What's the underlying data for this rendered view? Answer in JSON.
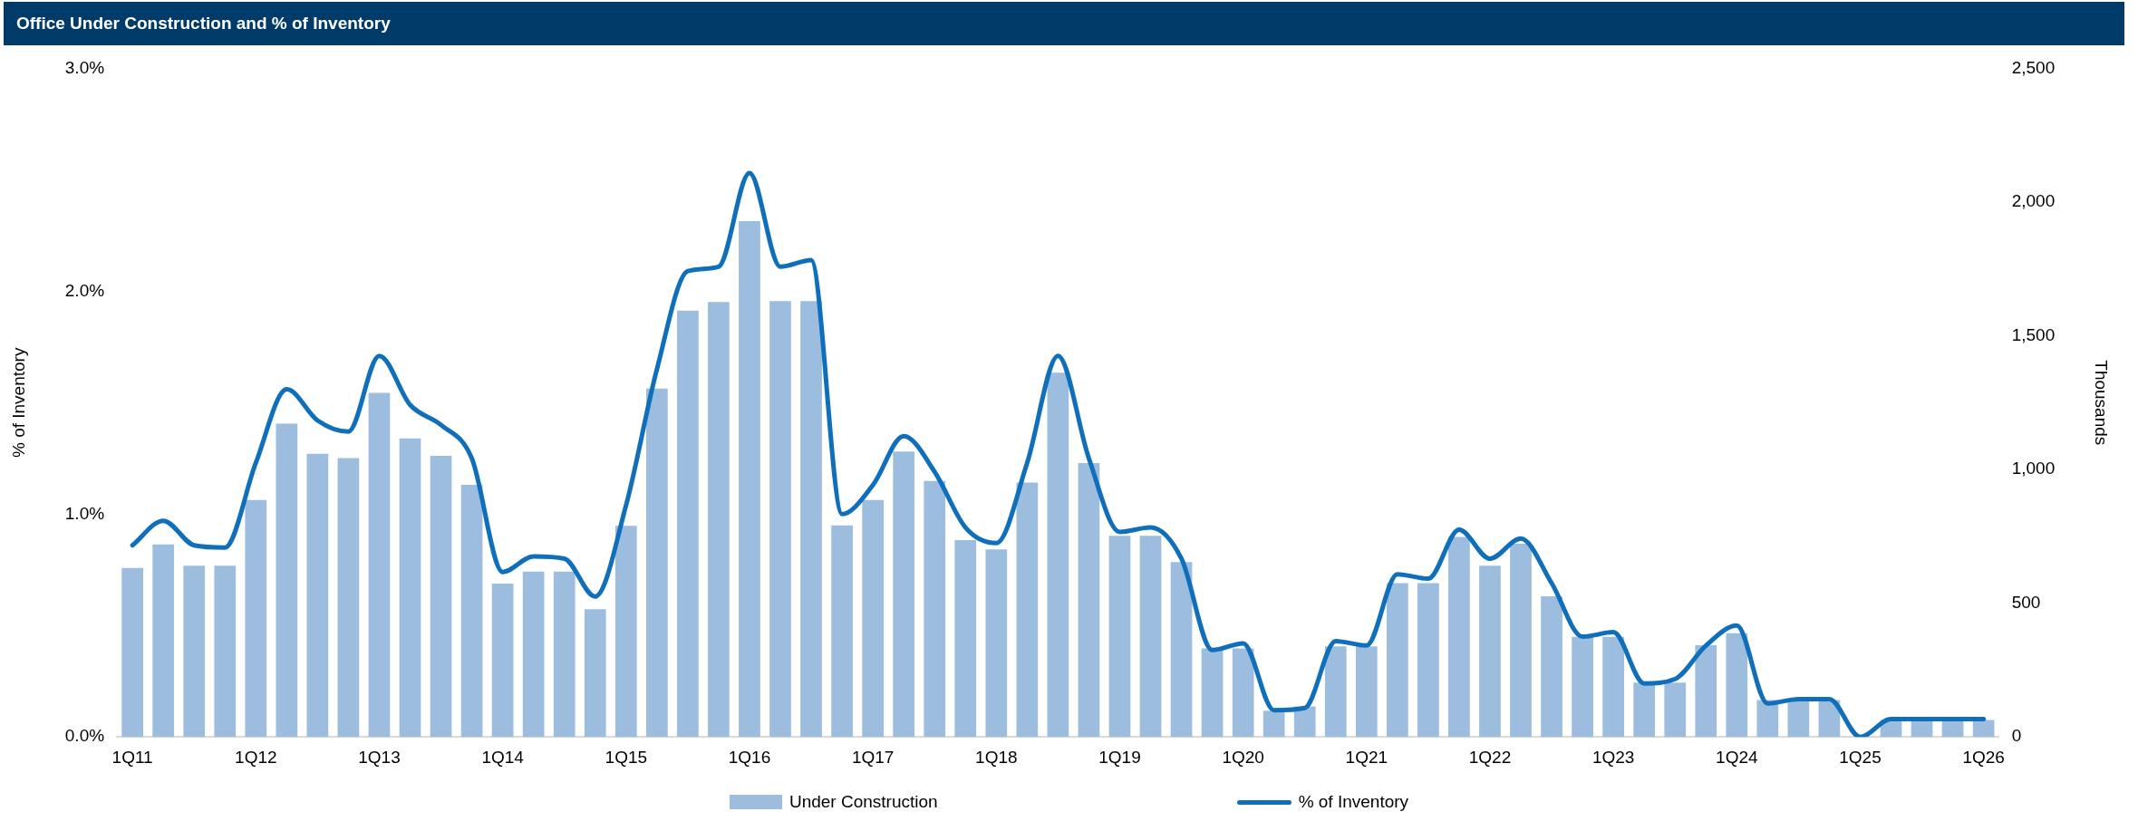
{
  "chart_data": {
    "type": "bar",
    "title": "Office Under Construction and % of Inventory",
    "ylabel": "% of Inventory",
    "y2label": "Thousands",
    "categories": [
      "1Q11",
      null,
      null,
      null,
      "1Q12",
      null,
      null,
      null,
      "1Q13",
      null,
      null,
      null,
      "1Q14",
      null,
      null,
      null,
      "1Q15",
      null,
      null,
      null,
      "1Q16",
      null,
      null,
      null,
      "1Q17",
      null,
      null,
      null,
      "1Q18",
      null,
      null,
      null,
      "1Q19",
      null,
      null,
      null,
      "1Q20",
      null,
      null,
      null,
      "1Q21",
      null,
      null,
      null,
      "1Q22",
      null,
      null,
      null,
      "1Q23",
      null,
      null,
      null,
      "1Q24",
      null,
      null,
      null,
      "1Q25",
      null,
      null,
      null,
      "1Q26"
    ],
    "series": [
      {
        "name": "Under Construction",
        "axis": "y2",
        "color": "#9dbddf",
        "values": [
          632,
          720,
          640,
          640,
          886,
          1171,
          1059,
          1043,
          1287,
          1116,
          1051,
          943,
          573,
          618,
          618,
          478,
          789,
          1303,
          1594,
          1626,
          1929,
          1630,
          1630,
          791,
          886,
          1067,
          957,
          736,
          701,
          951,
          1362,
          1024,
          752,
          752,
          654,
          331,
          331,
          98,
          114,
          339,
          339,
          575,
          575,
          748,
          640,
          722,
          526,
          374,
          374,
          203,
          203,
          343,
          388,
          138,
          138,
          138,
          0,
          63,
          63,
          63,
          63
        ]
      },
      {
        "name": "% of Inventory",
        "type": "line",
        "axis": "y",
        "color": "#0f6fba",
        "values": [
          0.86,
          0.97,
          0.86,
          0.85,
          1.23,
          1.56,
          1.42,
          1.37,
          1.71,
          1.49,
          1.4,
          1.25,
          0.74,
          0.81,
          0.8,
          0.63,
          1.04,
          1.65,
          2.09,
          2.11,
          2.53,
          2.11,
          2.14,
          1.0,
          1.13,
          1.35,
          1.19,
          0.94,
          0.87,
          1.23,
          1.71,
          1.25,
          0.92,
          0.94,
          0.8,
          0.39,
          0.42,
          0.12,
          0.13,
          0.43,
          0.41,
          0.73,
          0.71,
          0.93,
          0.8,
          0.89,
          0.69,
          0.45,
          0.47,
          0.24,
          0.26,
          0.41,
          0.5,
          0.15,
          0.17,
          0.17,
          0.0,
          0.08,
          0.08,
          0.08,
          0.08
        ]
      }
    ],
    "ylim": [
      0,
      3
    ],
    "yticks": [
      {
        "value": 0,
        "label": "0.0%"
      },
      {
        "value": 1,
        "label": "1.0%"
      },
      {
        "value": 2,
        "label": "2.0%"
      },
      {
        "value": 3,
        "label": "3.0%"
      }
    ],
    "y2lim": [
      0,
      2500
    ],
    "y2ticks": [
      0,
      {
        "value": 500,
        "label": "500"
      },
      {
        "value": 1000,
        "label": "1,000"
      },
      {
        "value": 1500,
        "label": "1,500"
      },
      {
        "value": 2000,
        "label": "2,000"
      },
      {
        "value": 2500,
        "label": "2,500"
      }
    ],
    "grid": false,
    "legend": "bottom",
    "marker": "none",
    "line_style": "solid"
  }
}
